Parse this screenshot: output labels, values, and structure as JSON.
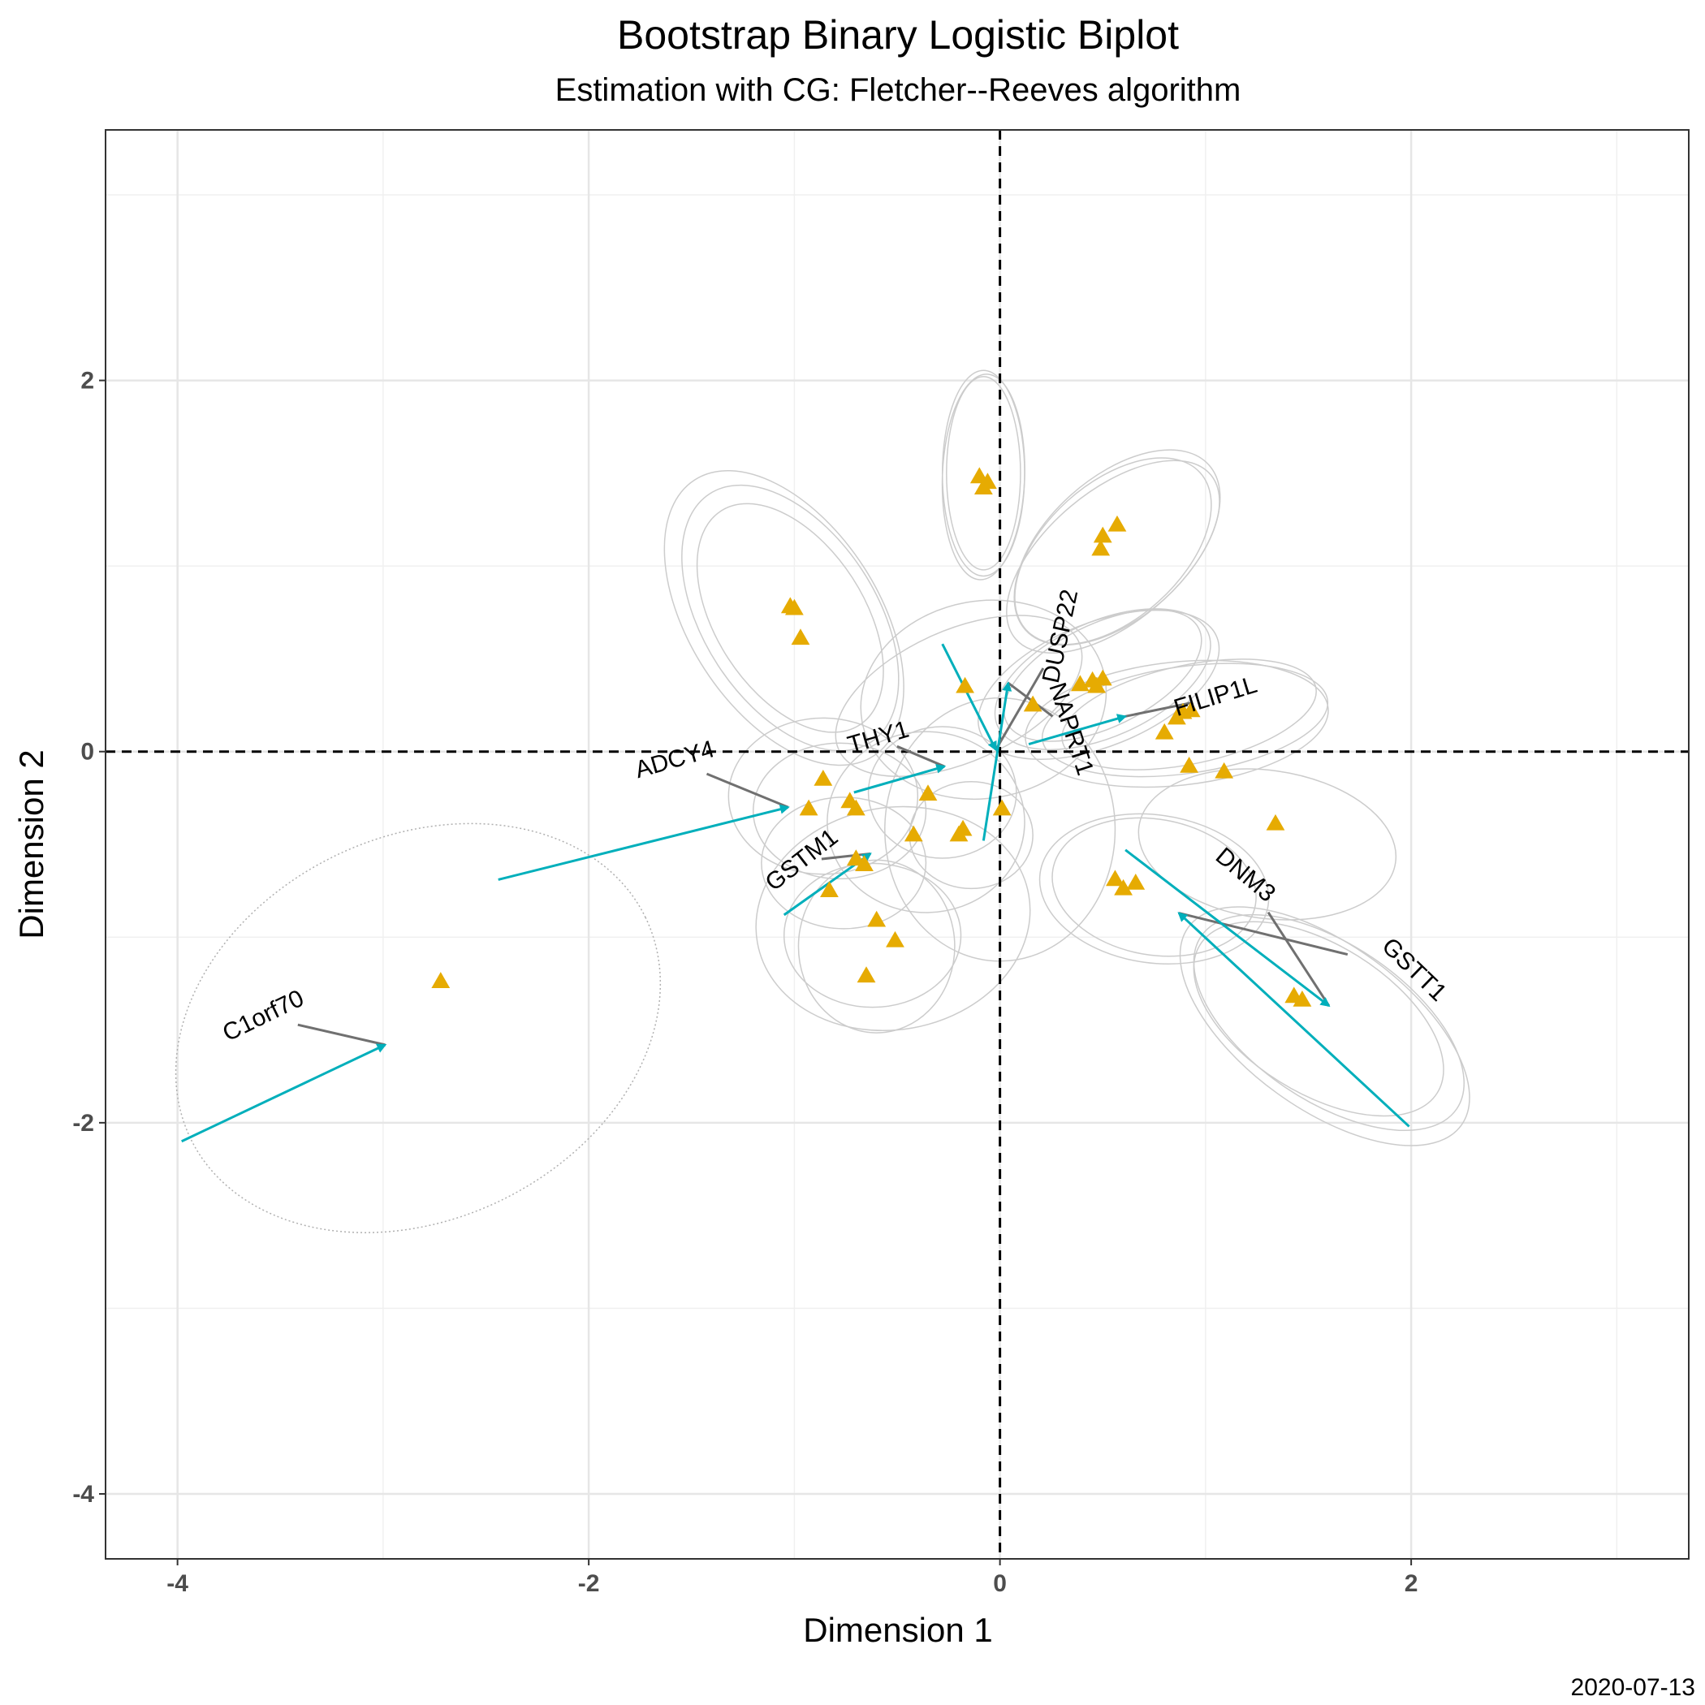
{
  "chart_data": {
    "type": "scatter",
    "title": "Bootstrap Binary Logistic Biplot",
    "subtitle": "Estimation with CG: Fletcher--Reeves algorithm",
    "xlabel": "Dimension 1",
    "ylabel": "Dimension 2",
    "caption": "2020-07-13",
    "xlim": [
      -4.35,
      3.35
    ],
    "ylim": [
      -4.35,
      3.35
    ],
    "x_ticks": [
      -4,
      -2,
      0,
      2
    ],
    "x_tick_labels": [
      "-4",
      "-2",
      "0",
      "2"
    ],
    "y_ticks": [
      -4,
      -2,
      0,
      2
    ],
    "y_tick_labels": [
      "-4",
      "-2",
      "0",
      "2"
    ],
    "grid": true,
    "reference_lines": [
      0,
      0
    ],
    "colors": {
      "points": "#E6AB02",
      "arrows": "#00AFBB",
      "ellipses": "#cccccc",
      "label_lines": "#707070",
      "grid": "#e6e6e6"
    },
    "individuals": [
      {
        "x": -2.72,
        "y": -1.24
      },
      {
        "x": -1.02,
        "y": 0.78
      },
      {
        "x": -1.0,
        "y": 0.77
      },
      {
        "x": -0.97,
        "y": 0.61
      },
      {
        "x": -0.86,
        "y": -0.15
      },
      {
        "x": -0.93,
        "y": -0.31
      },
      {
        "x": -0.73,
        "y": -0.27
      },
      {
        "x": -0.7,
        "y": -0.31
      },
      {
        "x": -0.83,
        "y": -0.75
      },
      {
        "x": -0.7,
        "y": -0.58
      },
      {
        "x": -0.66,
        "y": -0.61
      },
      {
        "x": -0.6,
        "y": -0.91
      },
      {
        "x": -0.51,
        "y": -1.02
      },
      {
        "x": -0.65,
        "y": -1.21
      },
      {
        "x": -0.42,
        "y": -0.45
      },
      {
        "x": -0.35,
        "y": -0.23
      },
      {
        "x": -0.2,
        "y": -0.45
      },
      {
        "x": -0.18,
        "y": -0.42
      },
      {
        "x": -0.17,
        "y": 0.35
      },
      {
        "x": -0.1,
        "y": 1.48
      },
      {
        "x": -0.06,
        "y": 1.45
      },
      {
        "x": -0.08,
        "y": 1.42
      },
      {
        "x": 0.01,
        "y": -0.31
      },
      {
        "x": 0.16,
        "y": 0.25
      },
      {
        "x": 0.39,
        "y": 0.36
      },
      {
        "x": 0.45,
        "y": 0.38
      },
      {
        "x": 0.47,
        "y": 0.35
      },
      {
        "x": 0.5,
        "y": 0.39
      },
      {
        "x": 0.49,
        "y": 1.09
      },
      {
        "x": 0.5,
        "y": 1.16
      },
      {
        "x": 0.57,
        "y": 1.22
      },
      {
        "x": 0.56,
        "y": -0.69
      },
      {
        "x": 0.6,
        "y": -0.74
      },
      {
        "x": 0.66,
        "y": -0.71
      },
      {
        "x": 0.8,
        "y": 0.1
      },
      {
        "x": 0.86,
        "y": 0.18
      },
      {
        "x": 0.89,
        "y": 0.21
      },
      {
        "x": 0.93,
        "y": 0.22
      },
      {
        "x": 0.92,
        "y": -0.08
      },
      {
        "x": 1.09,
        "y": -0.11
      },
      {
        "x": 1.34,
        "y": -0.39
      },
      {
        "x": 1.43,
        "y": -1.32
      },
      {
        "x": 1.47,
        "y": -1.34
      }
    ],
    "variables": [
      {
        "name": "C1orf70",
        "from": [
          -3.98,
          -2.1
        ],
        "to": [
          -2.99,
          -1.58
        ],
        "label_at": [
          -3.58,
          -1.43
        ],
        "label_angle": -26
      },
      {
        "name": "ADCY4",
        "from": [
          -2.44,
          -0.69
        ],
        "to": [
          -1.03,
          -0.3
        ],
        "label_at": [
          -1.58,
          -0.05
        ],
        "label_angle": -16
      },
      {
        "name": "THY1",
        "from": [
          -0.71,
          -0.22
        ],
        "to": [
          -0.27,
          -0.08
        ],
        "label_at": [
          -0.59,
          0.07
        ],
        "label_angle": -16
      },
      {
        "name": "GSTM1",
        "from": [
          -1.05,
          -0.88
        ],
        "to": [
          -0.63,
          -0.55
        ],
        "label_at": [
          -0.96,
          -0.59
        ],
        "label_angle": -38
      },
      {
        "name": "DUSP22",
        "from": [
          -0.28,
          0.58
        ],
        "to": [
          -0.02,
          0.01
        ],
        "label_at": [
          0.3,
          0.62
        ],
        "label_angle": -78
      },
      {
        "name": "NAPRT1",
        "from": [
          -0.08,
          -0.48
        ],
        "to": [
          0.04,
          0.37
        ],
        "label_at": [
          0.34,
          0.12
        ],
        "label_angle": 72
      },
      {
        "name": "FILIP1L",
        "from": [
          0.14,
          0.04
        ],
        "to": [
          0.61,
          0.19
        ],
        "label_at": [
          1.05,
          0.29
        ],
        "label_angle": -17
      },
      {
        "name": "DNM3",
        "from": [
          0.61,
          -0.53
        ],
        "to": [
          1.6,
          -1.37
        ],
        "label_at": [
          1.19,
          -0.67
        ],
        "label_angle": 40
      },
      {
        "name": "GSTT1",
        "from": [
          1.99,
          -2.02
        ],
        "to": [
          0.87,
          -0.87
        ],
        "label_at": [
          2.01,
          -1.18
        ],
        "label_angle": 44
      }
    ],
    "confidence_ellipses": [
      {
        "cx": -2.83,
        "cy": -1.49,
        "rx": 1.23,
        "ry": 0.93,
        "angle": 26,
        "dotted": true
      },
      {
        "cx": -1.05,
        "cy": 0.72,
        "rx": 0.8,
        "ry": 0.46,
        "angle": -57
      },
      {
        "cx": -1.02,
        "cy": 0.72,
        "rx": 0.72,
        "ry": 0.42,
        "angle": -57
      },
      {
        "cx": -1.02,
        "cy": 0.72,
        "rx": 0.62,
        "ry": 0.36,
        "angle": -57
      },
      {
        "cx": -0.08,
        "cy": 1.5,
        "rx": 0.5,
        "ry": 0.2,
        "angle": 90
      },
      {
        "cx": -0.08,
        "cy": 1.5,
        "rx": 0.47,
        "ry": 0.18,
        "angle": 90
      },
      {
        "cx": -0.08,
        "cy": 1.48,
        "rx": 0.5,
        "ry": 0.2,
        "angle": 88
      },
      {
        "cx": 0.55,
        "cy": 1.08,
        "rx": 0.57,
        "ry": 0.33,
        "angle": 42
      },
      {
        "cx": 0.57,
        "cy": 1.1,
        "rx": 0.6,
        "ry": 0.34,
        "angle": 42
      },
      {
        "cx": 0.55,
        "cy": 1.05,
        "rx": 0.62,
        "ry": 0.32,
        "angle": 40
      },
      {
        "cx": 0.5,
        "cy": 0.39,
        "rx": 0.56,
        "ry": 0.28,
        "angle": 24
      },
      {
        "cx": 0.5,
        "cy": 0.41,
        "rx": 0.52,
        "ry": 0.25,
        "angle": 26
      },
      {
        "cx": 0.48,
        "cy": 0.36,
        "rx": 0.62,
        "ry": 0.3,
        "angle": 22
      },
      {
        "cx": 0.9,
        "cy": 0.17,
        "rx": 0.7,
        "ry": 0.26,
        "angle": 8
      },
      {
        "cx": 0.92,
        "cy": 0.2,
        "rx": 0.63,
        "ry": 0.24,
        "angle": 12
      },
      {
        "cx": 0.86,
        "cy": 0.15,
        "rx": 0.74,
        "ry": 0.3,
        "angle": 6
      },
      {
        "cx": 1.6,
        "cy": -1.46,
        "rx": 0.75,
        "ry": 0.38,
        "angle": -34
      },
      {
        "cx": 1.55,
        "cy": -1.44,
        "rx": 0.68,
        "ry": 0.36,
        "angle": -32
      },
      {
        "cx": 1.58,
        "cy": -1.48,
        "rx": 0.82,
        "ry": 0.4,
        "angle": -36
      },
      {
        "cx": 0.75,
        "cy": -0.74,
        "rx": 0.56,
        "ry": 0.36,
        "angle": -8
      },
      {
        "cx": 0.75,
        "cy": -0.73,
        "rx": 0.5,
        "ry": 0.33,
        "angle": -10
      },
      {
        "cx": 1.3,
        "cy": -0.5,
        "rx": 0.63,
        "ry": 0.36,
        "angle": -8
      },
      {
        "cx": -0.62,
        "cy": -0.99,
        "rx": 0.43,
        "ry": 0.35,
        "angle": 0
      },
      {
        "cx": -0.6,
        "cy": -1.05,
        "rx": 0.38,
        "ry": 0.42,
        "angle": 0
      },
      {
        "cx": -0.52,
        "cy": -0.9,
        "rx": 0.67,
        "ry": 0.54,
        "angle": 10
      },
      {
        "cx": -0.76,
        "cy": -0.6,
        "rx": 0.4,
        "ry": 0.32,
        "angle": 0
      },
      {
        "cx": -0.78,
        "cy": -0.32,
        "rx": 0.42,
        "ry": 0.33,
        "angle": 0
      },
      {
        "cx": -0.86,
        "cy": -0.24,
        "rx": 0.46,
        "ry": 0.38,
        "angle": 0
      },
      {
        "cx": -0.36,
        "cy": -0.38,
        "rx": 0.48,
        "ry": 0.44,
        "angle": 0
      },
      {
        "cx": -0.28,
        "cy": -0.22,
        "rx": 0.36,
        "ry": 0.32,
        "angle": 0
      },
      {
        "cx": -0.2,
        "cy": 0.3,
        "rx": 0.64,
        "ry": 0.32,
        "angle": 24
      },
      {
        "cx": -0.08,
        "cy": 0.28,
        "rx": 0.6,
        "ry": 0.48,
        "angle": 10
      },
      {
        "cx": 0.0,
        "cy": -0.42,
        "rx": 0.64,
        "ry": 0.56,
        "angle": 90
      },
      {
        "cx": -0.14,
        "cy": -0.45,
        "rx": 0.3,
        "ry": 0.26,
        "angle": 0
      }
    ]
  }
}
